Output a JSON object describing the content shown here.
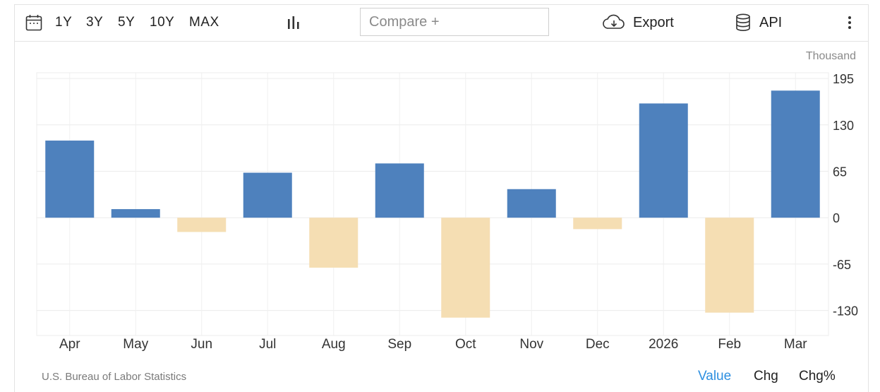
{
  "toolbar": {
    "ranges": [
      "1Y",
      "3Y",
      "5Y",
      "10Y",
      "MAX"
    ],
    "compare_placeholder": "Compare +",
    "export_label": "Export",
    "api_label": "API"
  },
  "chart_data": {
    "type": "bar",
    "unit_label": "Thousand",
    "categories": [
      "Apr",
      "May",
      "Jun",
      "Jul",
      "Aug",
      "Sep",
      "Oct",
      "Nov",
      "Dec",
      "2026",
      "Feb",
      "Mar"
    ],
    "values": [
      108,
      12,
      -20,
      63,
      -70,
      76,
      -140,
      40,
      -16,
      160,
      -133,
      178
    ],
    "y_ticks": [
      195,
      130,
      65,
      0,
      -65,
      -130
    ],
    "ylim": [
      -165,
      203
    ],
    "positive_color": "#4e81bd",
    "negative_color": "#f5deb3",
    "grid": true
  },
  "footer": {
    "source": "U.S. Bureau of Labor Statistics",
    "modes": [
      "Value",
      "Chg",
      "Chg%"
    ],
    "active_mode": "Value",
    "active_color": "#2d8fe0"
  }
}
